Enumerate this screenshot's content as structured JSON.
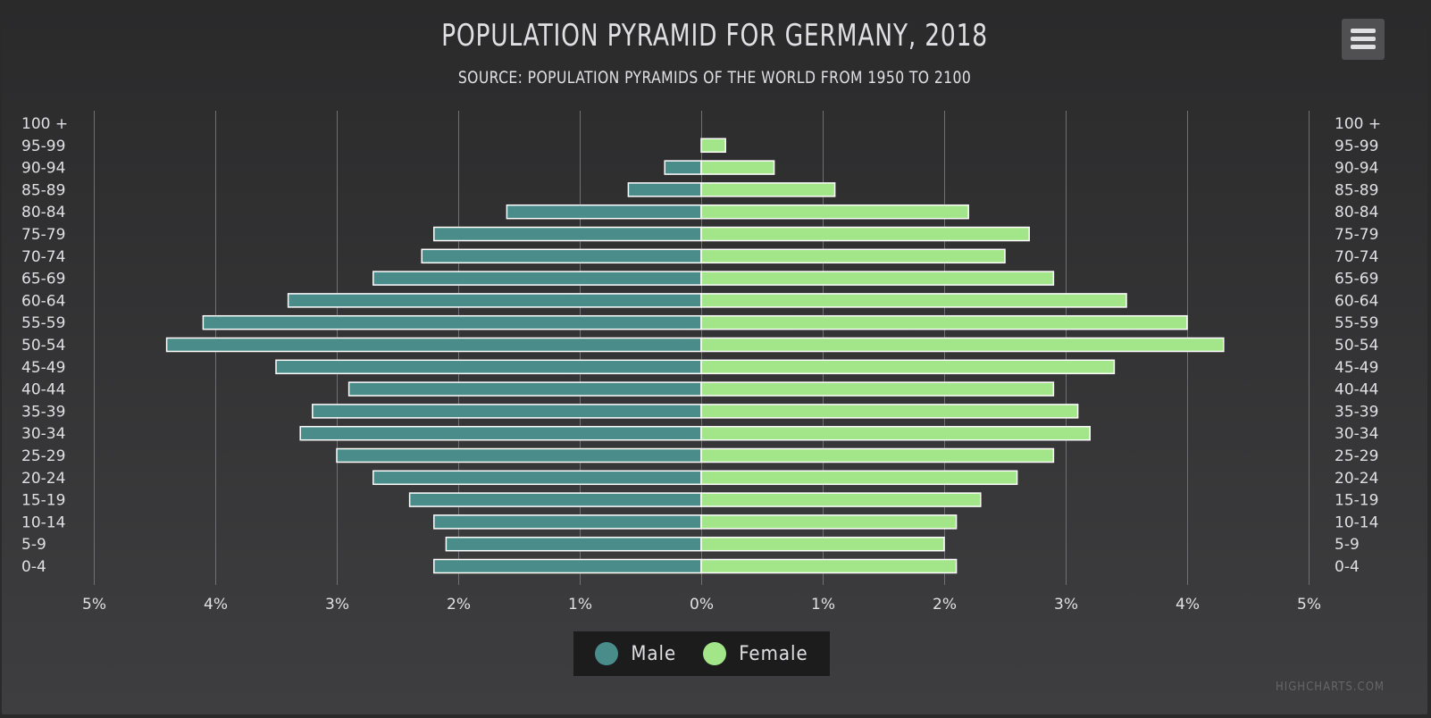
{
  "title": "POPULATION PYRAMID FOR GERMANY, 2018",
  "subtitle": "SOURCE: POPULATION PYRAMIDS OF THE WORLD FROM 1950 TO 2100",
  "menu_icon": "hamburger-menu-icon",
  "credits": "HIGHCHARTS.COM",
  "colors": {
    "background": "#2a2a2b",
    "grid": "#707073",
    "text": "#E0E0E3",
    "male": "#4a8c8a",
    "female": "#a2e689"
  },
  "chart_data": {
    "type": "bar",
    "categories": [
      "0-4",
      "5-9",
      "10-14",
      "15-19",
      "20-24",
      "25-29",
      "30-34",
      "35-39",
      "40-44",
      "45-49",
      "50-54",
      "55-59",
      "60-64",
      "65-69",
      "70-74",
      "75-79",
      "80-84",
      "85-89",
      "90-94",
      "95-99",
      "100 +"
    ],
    "series": [
      {
        "name": "Male",
        "values": [
          -2.2,
          -2.1,
          -2.2,
          -2.4,
          -2.7,
          -3.0,
          -3.3,
          -3.2,
          -2.9,
          -3.5,
          -4.4,
          -4.1,
          -3.4,
          -2.7,
          -2.3,
          -2.2,
          -1.6,
          -0.6,
          -0.3,
          0.0,
          0.0
        ]
      },
      {
        "name": "Female",
        "values": [
          2.1,
          2.0,
          2.1,
          2.3,
          2.6,
          2.9,
          3.2,
          3.1,
          2.9,
          3.4,
          4.3,
          4.0,
          3.5,
          2.9,
          2.5,
          2.7,
          2.2,
          1.1,
          0.6,
          0.2,
          0.0
        ]
      }
    ],
    "xlim": [
      -5,
      5
    ],
    "tick_labels": [
      "5%",
      "4%",
      "3%",
      "2%",
      "1%",
      "0%",
      "1%",
      "2%",
      "3%",
      "4%",
      "5%"
    ],
    "grid": true,
    "legend_position": "bottom-center"
  },
  "legend": [
    {
      "label": "Male",
      "color": "#4a8c8a"
    },
    {
      "label": "Female",
      "color": "#a2e689"
    }
  ]
}
